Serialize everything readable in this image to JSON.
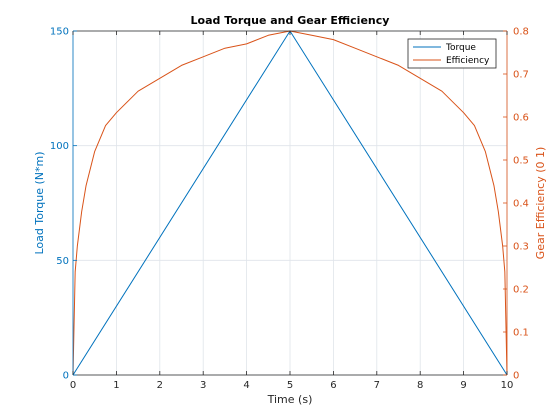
{
  "chart_data": {
    "type": "line",
    "title": "Load Torque and Gear Efficiency",
    "xlabel": "Time (s)",
    "ylabel_left": "Load Torque (N*m)",
    "ylabel_right": "Gear Efficiency (0 1)",
    "xlim": [
      0,
      10
    ],
    "ylim_left": [
      0,
      150
    ],
    "ylim_right": [
      0,
      0.8
    ],
    "x_ticks": [
      "0",
      "1",
      "2",
      "3",
      "4",
      "5",
      "6",
      "7",
      "8",
      "9",
      "10"
    ],
    "y_left_ticks": [
      "0",
      "50",
      "100",
      "150"
    ],
    "y_right_ticks": [
      "0",
      "0.1",
      "0.2",
      "0.3",
      "0.4",
      "0.5",
      "0.6",
      "0.7",
      "0.8"
    ],
    "grid": true,
    "legend_position": "top-right",
    "colors": {
      "torque": "#0072BD",
      "efficiency": "#D95319",
      "left_axis": "#0072BD",
      "right_axis": "#D95319",
      "grid": "#dfe4ea",
      "text": "#262626"
    },
    "series": [
      {
        "name": "Torque",
        "axis": "left",
        "x": [
          0,
          5,
          10
        ],
        "y": [
          0,
          150,
          0
        ]
      },
      {
        "name": "Efficiency",
        "axis": "right",
        "x": [
          0,
          0.05,
          0.1,
          0.2,
          0.3,
          0.5,
          0.75,
          1,
          1.5,
          2,
          2.5,
          3,
          3.5,
          4,
          4.5,
          5,
          5.5,
          6,
          6.5,
          7,
          7.5,
          8,
          8.5,
          9,
          9.25,
          9.5,
          9.7,
          9.8,
          9.9,
          9.95,
          10
        ],
        "y": [
          0,
          0.24,
          0.3,
          0.38,
          0.44,
          0.52,
          0.58,
          0.61,
          0.66,
          0.69,
          0.72,
          0.74,
          0.76,
          0.77,
          0.79,
          0.8,
          0.79,
          0.78,
          0.76,
          0.74,
          0.72,
          0.69,
          0.66,
          0.61,
          0.58,
          0.52,
          0.44,
          0.38,
          0.3,
          0.24,
          0
        ]
      }
    ]
  }
}
